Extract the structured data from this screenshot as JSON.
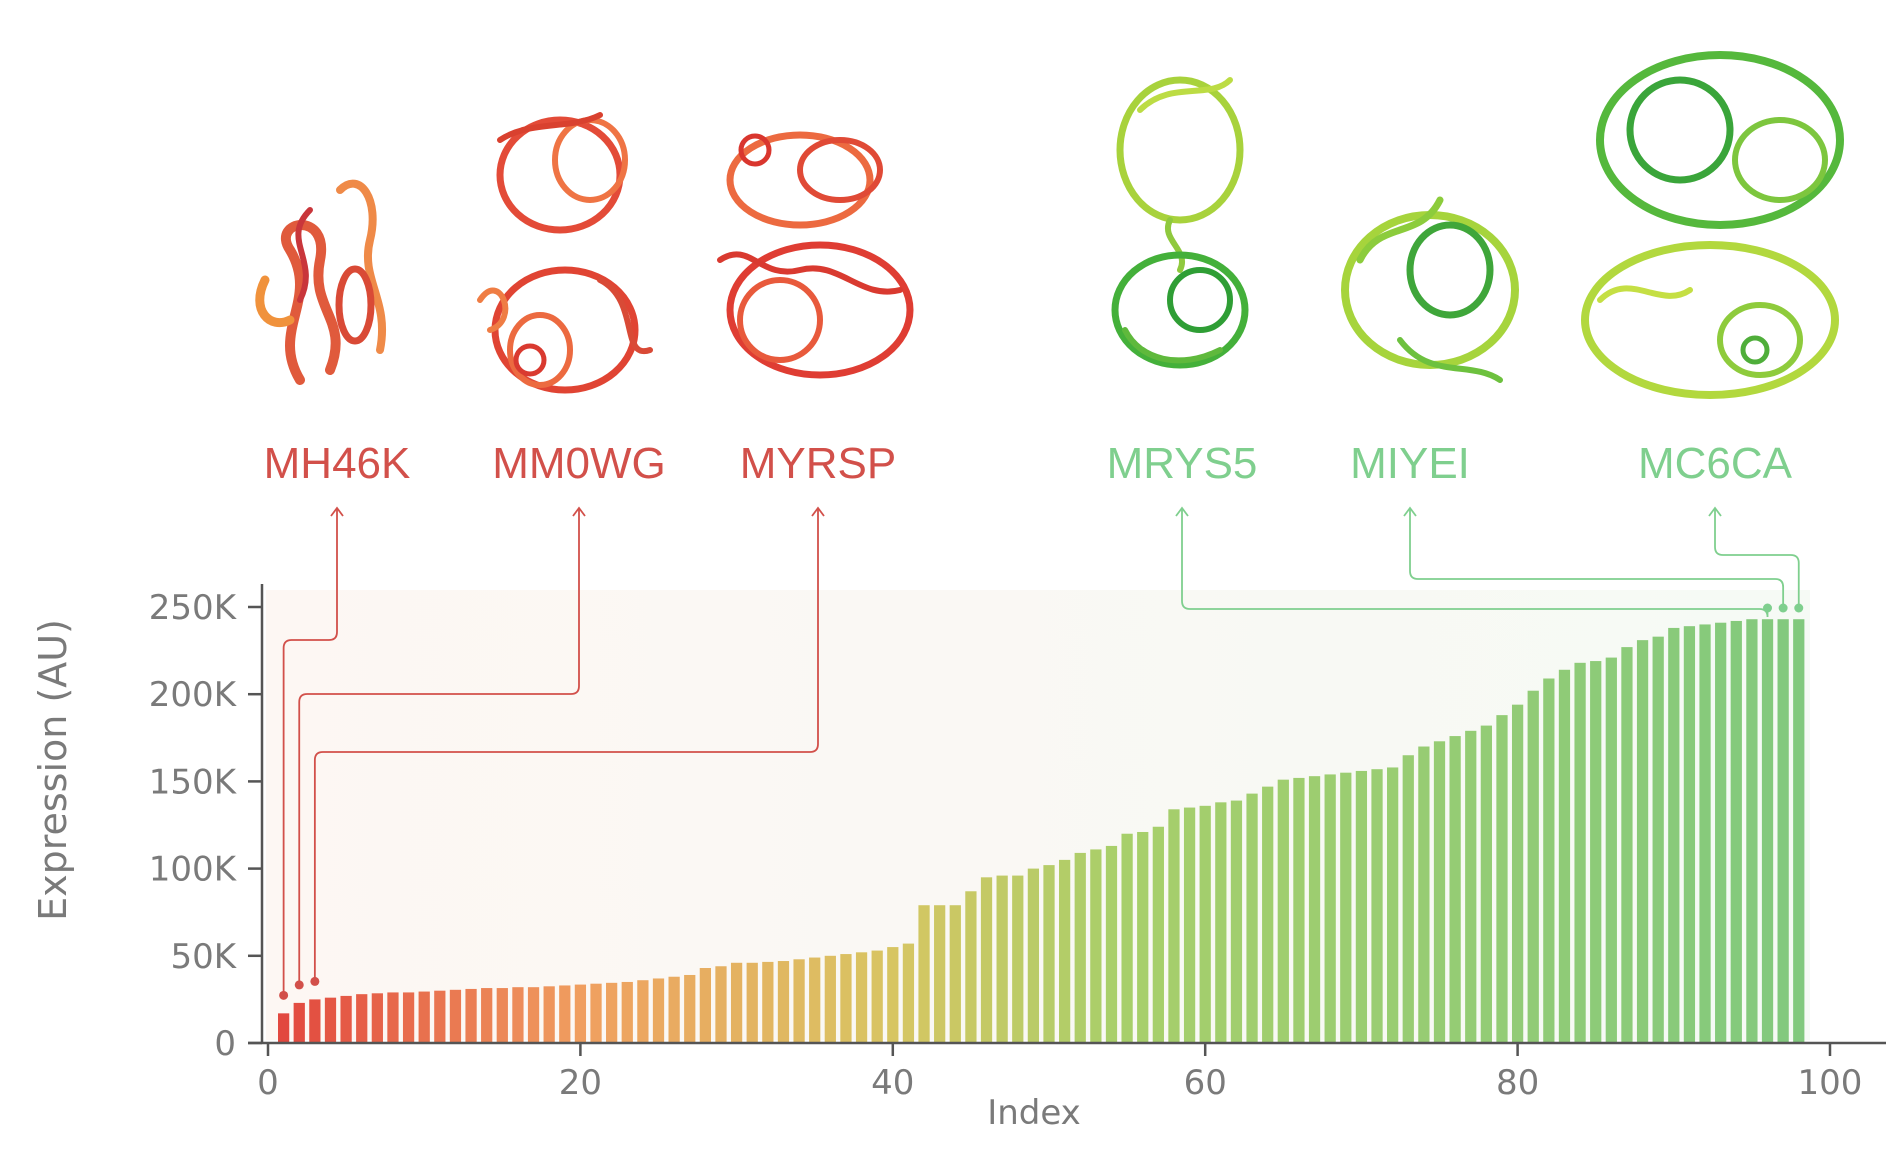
{
  "colors": {
    "low": "#e2483f",
    "mid": "#c9cd5a",
    "high": "#82c97e",
    "label_low": "#d2504a",
    "label_high": "#7fcf8e",
    "axis": "#555555",
    "tick_text": "#7a7a7a"
  },
  "chart_data": {
    "type": "bar",
    "title": "",
    "xlabel": "Index",
    "ylabel": "Expression (AU)",
    "xlim": [
      0,
      100
    ],
    "ylim": [
      0,
      250000
    ],
    "x_ticks": [
      0,
      20,
      40,
      60,
      80,
      100
    ],
    "x_tick_labels": [
      "0",
      "20",
      "40",
      "60",
      "80",
      "100"
    ],
    "y_ticks": [
      0,
      50000,
      100000,
      150000,
      200000,
      250000
    ],
    "y_tick_labels": [
      "0",
      "50K",
      "100K",
      "150K",
      "200K",
      "250K"
    ],
    "x": [
      1,
      2,
      3,
      4,
      5,
      6,
      7,
      8,
      9,
      10,
      11,
      12,
      13,
      14,
      15,
      16,
      17,
      18,
      19,
      20,
      21,
      22,
      23,
      24,
      25,
      26,
      27,
      28,
      29,
      30,
      31,
      32,
      33,
      34,
      35,
      36,
      37,
      38,
      39,
      40,
      41,
      42,
      43,
      44,
      45,
      46,
      47,
      48,
      49,
      50,
      51,
      52,
      53,
      54,
      55,
      56,
      57,
      58,
      59,
      60,
      61,
      62,
      63,
      64,
      65,
      66,
      67,
      68,
      69,
      70,
      71,
      72,
      73,
      74,
      75,
      76,
      77,
      78,
      79,
      80,
      81,
      82,
      83,
      84,
      85,
      86,
      87,
      88,
      89,
      90,
      91,
      92,
      93,
      94,
      95,
      96,
      97,
      98
    ],
    "values": [
      17000,
      23000,
      25000,
      26000,
      27000,
      28000,
      28500,
      29000,
      29000,
      29500,
      30000,
      30500,
      31000,
      31500,
      31500,
      32000,
      32000,
      32500,
      33000,
      33500,
      34000,
      34500,
      35000,
      36000,
      37000,
      38000,
      39000,
      43000,
      44000,
      46000,
      46000,
      46500,
      47000,
      48000,
      49000,
      50000,
      51000,
      52000,
      53000,
      55000,
      57000,
      79000,
      79000,
      79000,
      87000,
      95000,
      96000,
      96000,
      100000,
      102000,
      105000,
      109000,
      111000,
      113000,
      120000,
      121000,
      124000,
      134000,
      135000,
      136000,
      138000,
      139000,
      143000,
      147000,
      151000,
      152000,
      153000,
      154000,
      155000,
      156000,
      157000,
      158000,
      165000,
      170000,
      173000,
      176000,
      179000,
      182000,
      188000,
      194000,
      202000,
      209000,
      214000,
      218000,
      219000,
      221000,
      227000,
      231000,
      233000,
      238000,
      239000,
      240000,
      241000,
      242000,
      243000,
      243000,
      243000,
      243000
    ],
    "highlighted_proteins": [
      {
        "name": "MH46K",
        "group": "low",
        "index": 1,
        "value": 17000
      },
      {
        "name": "MM0WG",
        "group": "low",
        "index": 2,
        "value": 23000
      },
      {
        "name": "MYRSP",
        "group": "low",
        "index": 3,
        "value": 25000
      },
      {
        "name": "MRYS5",
        "group": "high",
        "index": 96,
        "value": 243000
      },
      {
        "name": "MIYEI",
        "group": "high",
        "index": 97,
        "value": 243000
      },
      {
        "name": "MC6CA",
        "group": "high",
        "index": 98,
        "value": 243000
      }
    ]
  }
}
